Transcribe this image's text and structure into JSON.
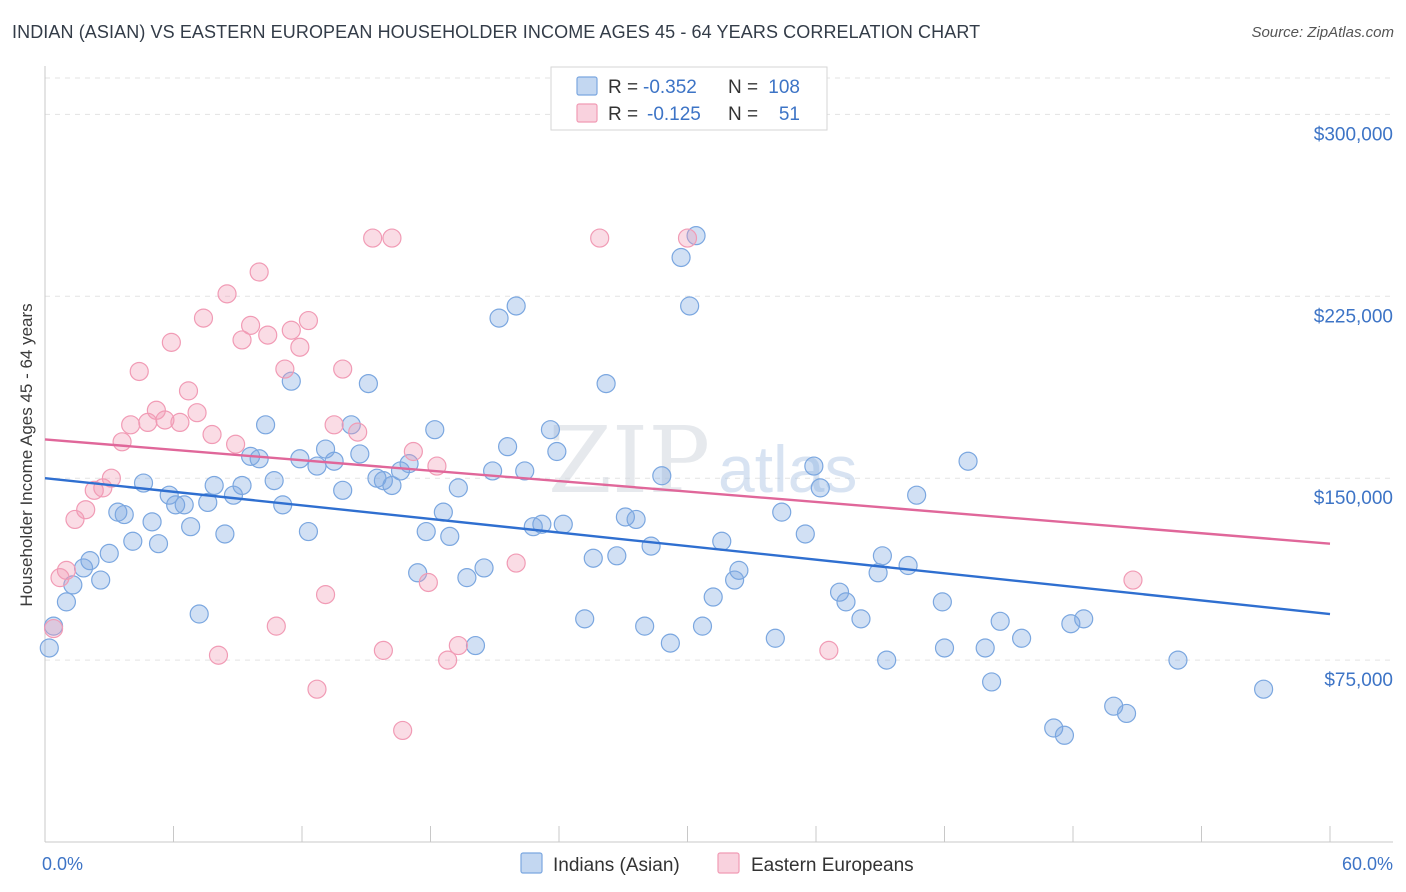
{
  "header": {
    "title": "INDIAN (ASIAN) VS EASTERN EUROPEAN HOUSEHOLDER INCOME AGES 45 - 64 YEARS CORRELATION CHART",
    "source": "Source: ZipAtlas.com"
  },
  "watermark": {
    "zip": "ZIP",
    "atlas": "atlas"
  },
  "legend": {
    "r_label": "R =",
    "n_label": "N =",
    "rows": [
      {
        "r": "-0.352",
        "n": "108",
        "color": "#7ba7e0"
      },
      {
        "r": "-0.125",
        "n": "51",
        "color": "#f19bb5"
      }
    ]
  },
  "chart_data": {
    "type": "scatter",
    "title": "INDIAN (ASIAN) VS EASTERN EUROPEAN HOUSEHOLDER INCOME AGES 45 - 64 YEARS CORRELATION CHART",
    "xlabel": "",
    "ylabel": "Householder Income Ages 45 - 64 years",
    "xlim": [
      0,
      60
    ],
    "ylim": [
      0,
      315000
    ],
    "x_tick_labels": [
      "0.0%",
      "60.0%"
    ],
    "y_ticks": [
      75000,
      150000,
      225000,
      300000
    ],
    "y_tick_labels": [
      "$75,000",
      "$150,000",
      "$225,000",
      "$300,000"
    ],
    "grid": true,
    "legend_position": "top-center",
    "series": [
      {
        "name": "Indians (Asian)",
        "color": "#7ba7e0",
        "line_color": "#2f6fd0",
        "trend": {
          "x": [
            0,
            60
          ],
          "y": [
            150000,
            94000
          ]
        },
        "points": [
          [
            0.2,
            80000
          ],
          [
            0.4,
            89000
          ],
          [
            1.0,
            99000
          ],
          [
            1.3,
            106000
          ],
          [
            1.8,
            113000
          ],
          [
            2.1,
            116000
          ],
          [
            2.6,
            108000
          ],
          [
            3.0,
            119000
          ],
          [
            3.4,
            136000
          ],
          [
            3.7,
            135000
          ],
          [
            4.1,
            124000
          ],
          [
            4.6,
            148000
          ],
          [
            5.0,
            132000
          ],
          [
            5.3,
            123000
          ],
          [
            5.8,
            143000
          ],
          [
            6.1,
            139000
          ],
          [
            6.5,
            139000
          ],
          [
            6.8,
            130000
          ],
          [
            7.2,
            94000
          ],
          [
            7.6,
            140000
          ],
          [
            7.9,
            147000
          ],
          [
            8.4,
            127000
          ],
          [
            8.8,
            143000
          ],
          [
            9.2,
            147000
          ],
          [
            9.6,
            159000
          ],
          [
            10.0,
            158000
          ],
          [
            10.3,
            172000
          ],
          [
            10.7,
            149000
          ],
          [
            11.1,
            139000
          ],
          [
            11.5,
            190000
          ],
          [
            11.9,
            158000
          ],
          [
            12.3,
            128000
          ],
          [
            12.7,
            155000
          ],
          [
            13.1,
            162000
          ],
          [
            13.5,
            157000
          ],
          [
            13.9,
            145000
          ],
          [
            14.3,
            172000
          ],
          [
            14.7,
            160000
          ],
          [
            15.1,
            189000
          ],
          [
            15.5,
            150000
          ],
          [
            15.8,
            149000
          ],
          [
            16.2,
            147000
          ],
          [
            16.6,
            153000
          ],
          [
            17.0,
            156000
          ],
          [
            17.4,
            111000
          ],
          [
            17.8,
            128000
          ],
          [
            18.2,
            170000
          ],
          [
            18.6,
            136000
          ],
          [
            18.9,
            126000
          ],
          [
            19.3,
            146000
          ],
          [
            19.7,
            109000
          ],
          [
            20.1,
            81000
          ],
          [
            20.5,
            113000
          ],
          [
            20.9,
            153000
          ],
          [
            21.2,
            216000
          ],
          [
            21.6,
            163000
          ],
          [
            22.0,
            221000
          ],
          [
            22.4,
            153000
          ],
          [
            22.8,
            130000
          ],
          [
            23.2,
            131000
          ],
          [
            23.6,
            170000
          ],
          [
            23.9,
            161000
          ],
          [
            24.2,
            131000
          ],
          [
            25.2,
            92000
          ],
          [
            25.6,
            117000
          ],
          [
            26.2,
            189000
          ],
          [
            26.7,
            118000
          ],
          [
            27.1,
            134000
          ],
          [
            27.6,
            133000
          ],
          [
            28.0,
            89000
          ],
          [
            28.3,
            122000
          ],
          [
            28.8,
            151000
          ],
          [
            29.2,
            82000
          ],
          [
            29.7,
            241000
          ],
          [
            30.1,
            221000
          ],
          [
            30.4,
            250000
          ],
          [
            30.7,
            89000
          ],
          [
            31.2,
            101000
          ],
          [
            31.6,
            124000
          ],
          [
            32.2,
            108000
          ],
          [
            32.4,
            112000
          ],
          [
            34.1,
            84000
          ],
          [
            34.4,
            136000
          ],
          [
            35.5,
            127000
          ],
          [
            35.9,
            155000
          ],
          [
            36.2,
            146000
          ],
          [
            37.1,
            103000
          ],
          [
            37.4,
            99000
          ],
          [
            38.1,
            92000
          ],
          [
            38.9,
            111000
          ],
          [
            39.1,
            118000
          ],
          [
            39.3,
            75000
          ],
          [
            40.3,
            114000
          ],
          [
            40.7,
            143000
          ],
          [
            41.9,
            99000
          ],
          [
            42.0,
            80000
          ],
          [
            43.1,
            157000
          ],
          [
            43.9,
            80000
          ],
          [
            44.2,
            66000
          ],
          [
            44.6,
            91000
          ],
          [
            45.6,
            84000
          ],
          [
            47.1,
            47000
          ],
          [
            47.6,
            44000
          ],
          [
            47.9,
            90000
          ],
          [
            48.5,
            92000
          ],
          [
            49.9,
            56000
          ],
          [
            50.5,
            53000
          ],
          [
            52.9,
            75000
          ],
          [
            56.9,
            63000
          ]
        ]
      },
      {
        "name": "Eastern Europeans",
        "color": "#f19bb5",
        "line_color": "#e0679a",
        "trend": {
          "x": [
            0,
            60
          ],
          "y": [
            166000,
            123000
          ]
        },
        "points": [
          [
            0.4,
            88000
          ],
          [
            0.7,
            109000
          ],
          [
            1.0,
            112000
          ],
          [
            1.4,
            133000
          ],
          [
            1.9,
            137000
          ],
          [
            2.3,
            145000
          ],
          [
            2.7,
            146000
          ],
          [
            3.1,
            150000
          ],
          [
            3.6,
            165000
          ],
          [
            4.0,
            172000
          ],
          [
            4.4,
            194000
          ],
          [
            4.8,
            173000
          ],
          [
            5.2,
            178000
          ],
          [
            5.6,
            174000
          ],
          [
            5.9,
            206000
          ],
          [
            6.3,
            173000
          ],
          [
            6.7,
            186000
          ],
          [
            7.1,
            177000
          ],
          [
            7.4,
            216000
          ],
          [
            7.8,
            168000
          ],
          [
            8.1,
            77000
          ],
          [
            8.5,
            226000
          ],
          [
            8.9,
            164000
          ],
          [
            9.2,
            207000
          ],
          [
            9.6,
            213000
          ],
          [
            10.0,
            235000
          ],
          [
            10.4,
            209000
          ],
          [
            10.8,
            89000
          ],
          [
            11.2,
            195000
          ],
          [
            11.5,
            211000
          ],
          [
            11.9,
            204000
          ],
          [
            12.3,
            215000
          ],
          [
            12.7,
            63000
          ],
          [
            13.1,
            102000
          ],
          [
            13.5,
            172000
          ],
          [
            13.9,
            195000
          ],
          [
            14.6,
            169000
          ],
          [
            15.3,
            249000
          ],
          [
            15.8,
            79000
          ],
          [
            16.2,
            249000
          ],
          [
            16.7,
            46000
          ],
          [
            17.2,
            161000
          ],
          [
            17.9,
            107000
          ],
          [
            18.3,
            155000
          ],
          [
            18.8,
            75000
          ],
          [
            19.3,
            81000
          ],
          [
            22.0,
            115000
          ],
          [
            25.9,
            249000
          ],
          [
            30.0,
            249000
          ],
          [
            36.6,
            79000
          ],
          [
            50.8,
            108000
          ]
        ]
      }
    ]
  },
  "bottom_legend": [
    "Indians (Asian)",
    "Eastern Europeans"
  ]
}
